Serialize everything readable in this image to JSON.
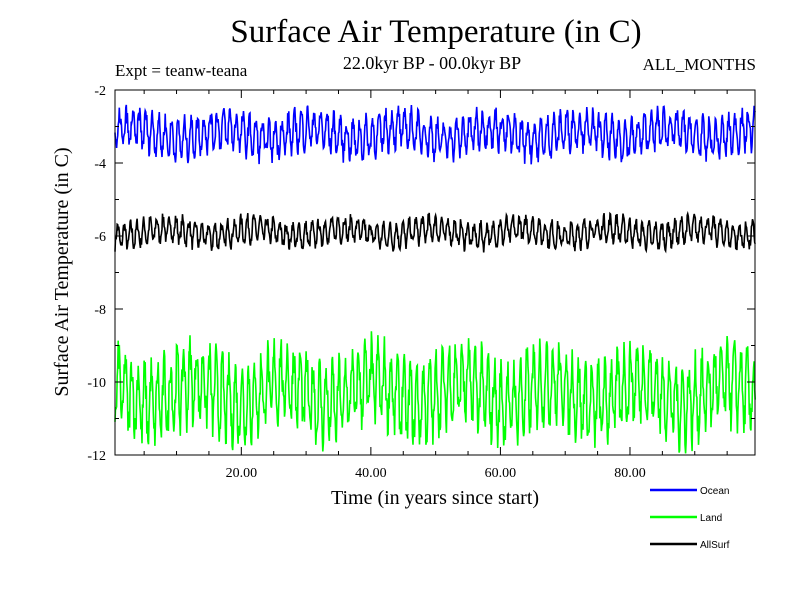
{
  "chart_data": {
    "type": "line",
    "title": "Surface Air Temperature (in C)",
    "subtitle": "22.0kyr BP - 00.0kyr BP",
    "experiment": "Expt = teanw-teana",
    "months": "ALL_MONTHS",
    "xlabel": "Time (in years since start)",
    "ylabel": "Surface Air Temperature (in C)",
    "xlim": [
      0.5,
      99.3
    ],
    "ylim": [
      -12,
      -2
    ],
    "x_ticks": [
      20,
      40,
      60,
      80
    ],
    "x_tick_labels": [
      "20.00",
      "40.00",
      "60.00",
      "80.00"
    ],
    "y_ticks": [
      -12,
      -10,
      -8,
      -6,
      -4,
      -2
    ],
    "y_tick_labels": [
      "-12",
      "-10",
      "-8",
      "-6",
      "-4",
      "-2"
    ],
    "series": [
      {
        "name": "Ocean",
        "color": "#0000ff",
        "mean": -3.2,
        "amplitude": 0.45,
        "min": -4.3,
        "max": -2.4
      },
      {
        "name": "Land",
        "color": "#00ff00",
        "mean": -10.3,
        "amplitude": 0.9,
        "min": -12.0,
        "max": -8.5
      },
      {
        "name": "AllSurf",
        "color": "#000000",
        "mean": -5.9,
        "amplitude": 0.3,
        "min": -6.7,
        "max": -4.9
      }
    ]
  }
}
